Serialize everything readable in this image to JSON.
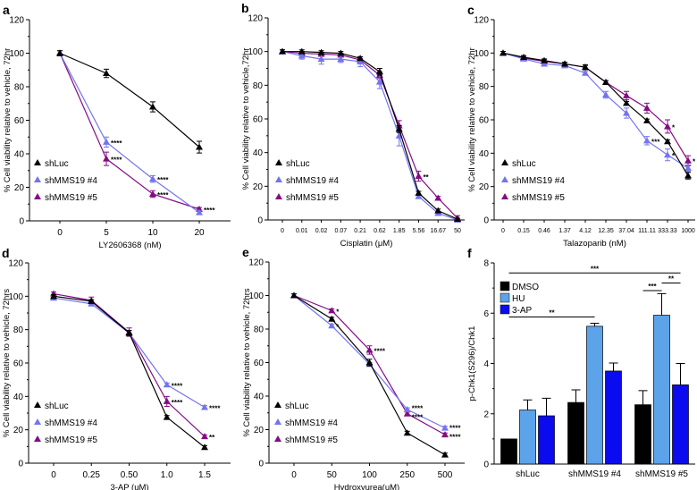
{
  "colors": {
    "shLuc": "#000000",
    "shMMS19 #4": "#7474f0",
    "shMMS19 #5": "#850a85",
    "DMSO": "#000000",
    "HU": "#5ca3ea",
    "3-AP": "#0b0bf0"
  },
  "chart_data": [
    {
      "panel": "a",
      "type": "line",
      "xlabel": "LY2606368 (nM)",
      "ylabel": "% Cell viability relative to vehicle, 72hr",
      "ylim": [
        0,
        120
      ],
      "yticks": [
        0,
        20,
        40,
        60,
        80,
        100,
        120
      ],
      "categories": [
        "0",
        "5",
        "10",
        "20"
      ],
      "series": [
        {
          "name": "shLuc",
          "values": [
            100,
            88,
            68,
            44
          ],
          "err": [
            1.5,
            2.5,
            3,
            3.5
          ]
        },
        {
          "name": "shMMS19 #4",
          "values": [
            100,
            47,
            25,
            5
          ],
          "err": [
            1.5,
            3,
            2,
            1
          ]
        },
        {
          "name": "shMMS19 #5",
          "values": [
            100,
            37,
            16,
            7
          ],
          "err": [
            1.5,
            4,
            2,
            1
          ]
        }
      ],
      "annotations": [
        {
          "series": 1,
          "x": 1,
          "text": "****"
        },
        {
          "series": 2,
          "x": 1,
          "text": "****"
        },
        {
          "series": 1,
          "x": 2,
          "text": "****"
        },
        {
          "series": 2,
          "x": 2,
          "text": "****"
        },
        {
          "series": 2,
          "x": 3,
          "text": "****"
        }
      ]
    },
    {
      "panel": "b",
      "type": "line",
      "xlabel": "Cisplatin (μM)",
      "ylabel": "% Cell viability relative to vehicle,72hr",
      "ylim": [
        0,
        120
      ],
      "yticks": [
        0,
        20,
        40,
        60,
        80,
        100,
        120
      ],
      "categories": [
        "0",
        "0.01",
        "0.02",
        "0.07",
        "0.21",
        "0.62",
        "1.85",
        "5.56",
        "16.67",
        "50"
      ],
      "series": [
        {
          "name": "shLuc",
          "values": [
            100,
            100,
            99.5,
            99,
            96,
            88,
            54,
            16,
            5.5,
            0.5
          ],
          "err": [
            1,
            1,
            1,
            1,
            1,
            2,
            2,
            1,
            1,
            0.5
          ]
        },
        {
          "name": "shMMS19 #4",
          "values": [
            100,
            97.5,
            95.5,
            95.5,
            94,
            82,
            50,
            14,
            4,
            0
          ],
          "err": [
            1,
            2,
            3,
            2,
            3,
            4,
            6,
            1,
            1,
            0.5
          ]
        },
        {
          "name": "shMMS19 #5",
          "values": [
            100,
            99,
            98.5,
            98,
            95,
            86,
            56,
            26,
            13,
            1
          ],
          "err": [
            1,
            1,
            1,
            1,
            1,
            2,
            3,
            3,
            1,
            1.5
          ]
        }
      ],
      "annotations": [
        {
          "series": 2,
          "x": 7,
          "text": "**"
        }
      ]
    },
    {
      "panel": "c",
      "type": "line",
      "xlabel": "Talazoparib (nM)",
      "ylabel": "% Cell viability relative to vehicle, 72hr",
      "ylim": [
        0,
        120
      ],
      "yticks": [
        0,
        20,
        40,
        60,
        80,
        100,
        120
      ],
      "categories": [
        "0",
        "0.15",
        "0.46",
        "1.37",
        "4.12",
        "12.35",
        "37.04",
        "111.11",
        "333.33",
        "1000"
      ],
      "series": [
        {
          "name": "shLuc",
          "values": [
            100,
            97.5,
            95.5,
            93.5,
            91.5,
            82.5,
            70,
            59.5,
            47,
            26.5
          ],
          "err": [
            1,
            1,
            1,
            1,
            1.5,
            1,
            1,
            1,
            1,
            2
          ]
        },
        {
          "name": "shMMS19 #4",
          "values": [
            100,
            96.5,
            93.5,
            92.5,
            88,
            75,
            64,
            47.5,
            39,
            31
          ],
          "err": [
            1,
            1,
            1,
            1,
            1,
            2,
            3,
            2.5,
            3.5,
            2
          ]
        },
        {
          "name": "shMMS19 #5",
          "values": [
            100,
            97,
            95,
            93.5,
            91.5,
            82.5,
            74.5,
            67,
            56,
            35.5
          ],
          "err": [
            1,
            1,
            1,
            1,
            1,
            1,
            2.5,
            3,
            4,
            3
          ]
        }
      ],
      "annotations": [
        {
          "series": 1,
          "x": 7,
          "text": "***"
        },
        {
          "series": 1,
          "x": 8,
          "text": "*"
        },
        {
          "series": 2,
          "x": 8,
          "text": "*"
        },
        {
          "series": 2,
          "x": 9,
          "text": "*"
        }
      ]
    },
    {
      "panel": "d",
      "type": "line",
      "xlabel": "3-AP (uM)",
      "ylabel": "% Cell viability relative to vehicle, 72hrs",
      "ylim": [
        0,
        120
      ],
      "yticks": [
        0,
        20,
        40,
        60,
        80,
        100,
        120
      ],
      "categories": [
        "0",
        "0.25",
        "0.50",
        "1.0",
        "1.5"
      ],
      "series": [
        {
          "name": "shLuc",
          "values": [
            100,
            97,
            78,
            27.5,
            9.5
          ],
          "err": [
            1,
            1,
            1.5,
            1,
            1
          ]
        },
        {
          "name": "shMMS19 #4",
          "values": [
            99,
            95.5,
            78,
            47,
            33.5
          ],
          "err": [
            1,
            1,
            1.5,
            1,
            1
          ]
        },
        {
          "name": "shMMS19 #5",
          "values": [
            101.5,
            97.5,
            78.5,
            37,
            16
          ],
          "err": [
            1,
            2,
            2.5,
            3,
            1
          ]
        }
      ],
      "annotations": [
        {
          "series": 1,
          "x": 3,
          "text": "****"
        },
        {
          "series": 2,
          "x": 3,
          "text": "****"
        },
        {
          "series": 1,
          "x": 4,
          "text": "****"
        },
        {
          "series": 2,
          "x": 4,
          "text": "**"
        }
      ]
    },
    {
      "panel": "e",
      "type": "line",
      "xlabel": "Hydroxyurea(uM)",
      "ylabel": "% Cell viability relative to vehicle, 72hrs",
      "ylim": [
        0,
        120
      ],
      "yticks": [
        0,
        20,
        40,
        60,
        80,
        100,
        120
      ],
      "categories": [
        "0",
        "50",
        "100",
        "250",
        "500"
      ],
      "series": [
        {
          "name": "shLuc",
          "values": [
            100,
            86,
            60,
            18,
            5
          ],
          "err": [
            1,
            1,
            2,
            1,
            1
          ]
        },
        {
          "name": "shMMS19 #4",
          "values": [
            100,
            82,
            59,
            32,
            21
          ],
          "err": [
            1,
            1,
            1,
            1,
            1
          ]
        },
        {
          "name": "shMMS19 #5",
          "values": [
            100,
            91,
            67.5,
            29.5,
            17
          ],
          "err": [
            1,
            1,
            2.5,
            1,
            1
          ]
        }
      ],
      "annotations": [
        {
          "series": 2,
          "x": 1,
          "text": "*"
        },
        {
          "series": 1,
          "x": 1,
          "text": "*"
        },
        {
          "series": 2,
          "x": 2,
          "text": "****"
        },
        {
          "series": 1,
          "x": 3,
          "text": "****"
        },
        {
          "series": 2,
          "x": 3,
          "text": "****"
        },
        {
          "series": 1,
          "x": 4,
          "text": "****"
        },
        {
          "series": 2,
          "x": 4,
          "text": "****"
        }
      ]
    },
    {
      "panel": "f",
      "type": "bar",
      "xlabel": "",
      "ylabel": "p-Chk1(S296)/Chk1",
      "ylim": [
        0,
        8
      ],
      "yticks": [
        0,
        2,
        4,
        6,
        8
      ],
      "categories": [
        "shLuc",
        "shMMS19 #4",
        "shMMS19 #5"
      ],
      "series": [
        {
          "name": "DMSO",
          "values": [
            1,
            2.45,
            2.36
          ],
          "err": [
            0,
            0.5,
            0.56
          ]
        },
        {
          "name": "HU",
          "values": [
            2.15,
            5.48,
            5.92
          ],
          "err": [
            0.4,
            0.12,
            0.86
          ]
        },
        {
          "name": "3-AP",
          "values": [
            1.92,
            3.7,
            3.15
          ],
          "err": [
            0.7,
            0.32,
            0.85
          ]
        }
      ],
      "brackets": [
        {
          "from": [
            0,
            0
          ],
          "to": [
            2,
            2
          ],
          "y": 7.6,
          "text": "***"
        },
        {
          "from": [
            0,
            0
          ],
          "to": [
            1,
            1
          ],
          "y": 5.85,
          "text": "**"
        },
        {
          "from": [
            2,
            0
          ],
          "to": [
            2,
            1
          ],
          "y": 6.9,
          "text": "***"
        },
        {
          "from": [
            2,
            1
          ],
          "to": [
            2,
            2
          ],
          "y": 7.2,
          "text": "**"
        }
      ]
    }
  ]
}
